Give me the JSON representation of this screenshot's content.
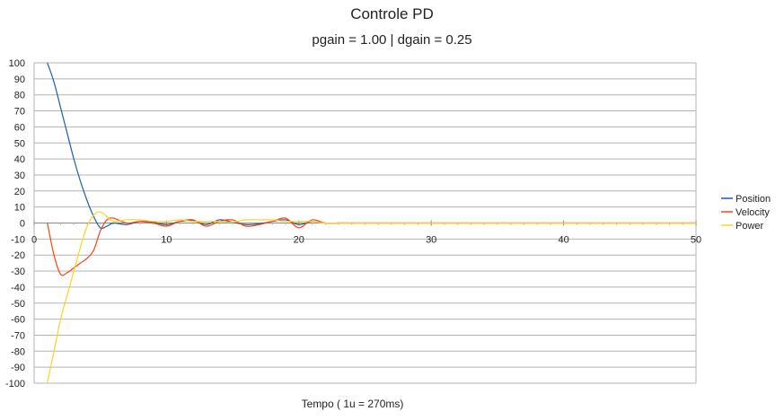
{
  "chart_data": {
    "type": "line",
    "title": "Controle PD",
    "subtitle": "pgain = 1.00 | dgain = 0.25",
    "xlabel": "Tempo ( 1u = 270ms)",
    "ylabel": "",
    "xlim": [
      0,
      50
    ],
    "ylim": [
      -100,
      100
    ],
    "x_ticks": [
      0,
      10,
      20,
      30,
      40,
      50
    ],
    "y_ticks": [
      100,
      90,
      80,
      70,
      60,
      50,
      40,
      30,
      20,
      10,
      0,
      -10,
      -20,
      -30,
      -40,
      -50,
      -60,
      -70,
      -80,
      -90,
      -100
    ],
    "grid": true,
    "legend_position": "right",
    "series": [
      {
        "name": "Position",
        "color": "#1f5ea8",
        "x": [
          1,
          1.5,
          2,
          2.5,
          3,
          3.5,
          4,
          4.5,
          5,
          5.5,
          6,
          7,
          8,
          9,
          10,
          11,
          12,
          13,
          14,
          15,
          16,
          17,
          18,
          19,
          20,
          21,
          22,
          23,
          24,
          26,
          30,
          35,
          40,
          45,
          50
        ],
        "y": [
          100,
          88,
          72,
          56,
          40,
          26,
          14,
          4,
          -3,
          -2,
          0,
          -1,
          1,
          0.5,
          -1,
          1,
          1.5,
          -1,
          2,
          0.5,
          -1,
          -0.5,
          1,
          2,
          -1,
          1,
          0,
          0,
          0,
          0,
          0,
          0,
          0,
          0,
          0
        ]
      },
      {
        "name": "Velocity",
        "color": "#ff420e",
        "x": [
          1,
          1.5,
          2,
          2.5,
          3,
          3.5,
          4,
          4.5,
          5,
          5.5,
          6,
          7,
          8,
          9,
          10,
          11,
          12,
          13,
          14,
          15,
          16,
          17,
          18,
          19,
          20,
          21,
          22,
          23,
          24,
          26,
          30,
          35,
          40,
          45,
          50
        ],
        "y": [
          0,
          -20,
          -32,
          -31,
          -28,
          -25,
          -22,
          -17,
          -5,
          2,
          3,
          0,
          1,
          0,
          -2,
          1,
          2,
          -2,
          1,
          2,
          -2,
          -1,
          1,
          3,
          -3,
          2,
          0,
          0,
          0,
          0,
          0,
          0,
          0,
          0,
          0
        ]
      },
      {
        "name": "Power",
        "color": "#ffd320",
        "x": [
          1,
          1.5,
          2,
          2.5,
          3,
          3.5,
          4,
          4.5,
          5,
          5.5,
          6,
          7,
          8,
          9,
          10,
          11,
          12,
          13,
          14,
          15,
          16,
          17,
          18,
          19,
          20,
          21,
          22,
          23,
          24,
          26,
          30,
          35,
          40,
          45,
          50
        ],
        "y": [
          -100,
          -80,
          -60,
          -45,
          -30,
          -15,
          -2,
          5,
          7,
          4,
          1,
          2,
          2,
          1,
          1,
          2,
          1,
          1,
          1,
          0.5,
          2,
          2,
          2,
          1,
          1,
          1,
          0,
          0,
          0,
          0,
          0,
          0,
          0,
          0,
          0
        ]
      }
    ]
  }
}
